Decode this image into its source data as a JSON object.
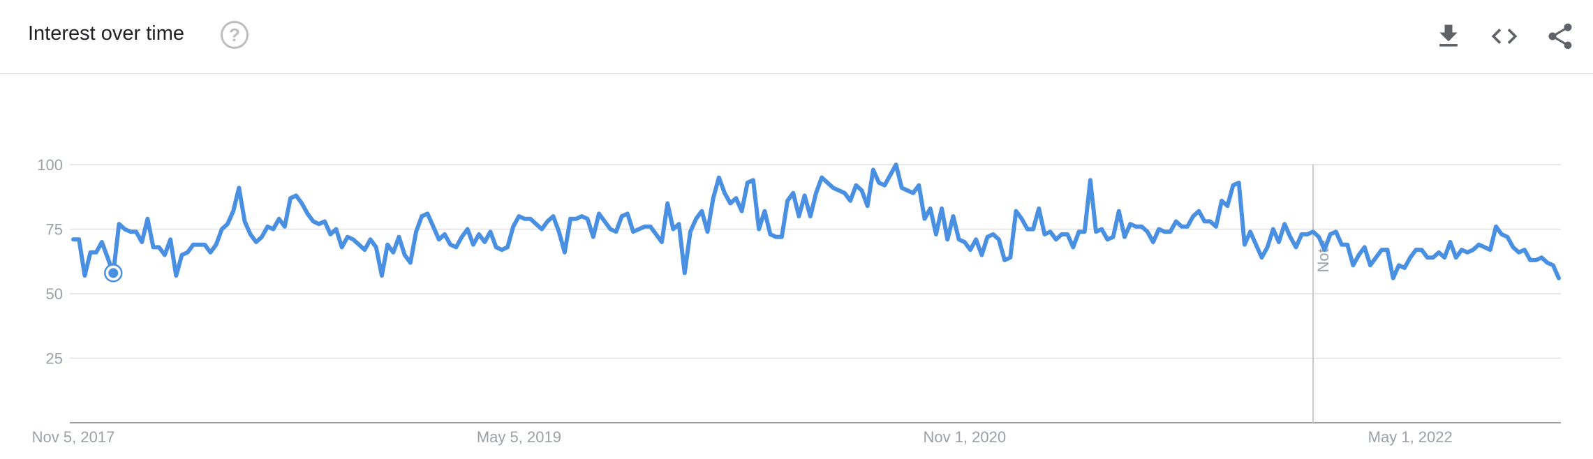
{
  "header": {
    "title": "Interest over time",
    "help_symbol": "?",
    "icons": [
      "download-icon",
      "embed-code-icon",
      "share-icon"
    ]
  },
  "colors": {
    "line": "#4a90e2",
    "grid": "#e0e0e0",
    "axis_text": "#9aa0a6"
  },
  "chart_data": {
    "type": "line",
    "title": "Interest over time",
    "xlabel": "",
    "ylabel": "",
    "ylim": [
      0,
      100
    ],
    "yticks": [
      25,
      50,
      75,
      100
    ],
    "grid": true,
    "x_start": "2017-11-05",
    "x_interval": "weekly",
    "x_tick_labels": [
      {
        "label": "Nov 5, 2017",
        "index": 0
      },
      {
        "label": "May 5, 2019",
        "index": 78
      },
      {
        "label": "Nov 1, 2020",
        "index": 156
      },
      {
        "label": "May 1, 2022",
        "index": 234
      }
    ],
    "highlight_index": 7,
    "note": {
      "label": "Note",
      "index": 217
    },
    "values": [
      71,
      71,
      57,
      66,
      66,
      70,
      64,
      58,
      77,
      75,
      74,
      74,
      70,
      79,
      68,
      68,
      65,
      71,
      57,
      65,
      66,
      69,
      69,
      69,
      66,
      69,
      75,
      77,
      82,
      91,
      78,
      73,
      70,
      72,
      76,
      75,
      79,
      76,
      87,
      88,
      85,
      81,
      78,
      77,
      78,
      73,
      75,
      68,
      72,
      71,
      69,
      67,
      71,
      68,
      57,
      69,
      66,
      72,
      65,
      62,
      74,
      80,
      81,
      76,
      71,
      73,
      69,
      68,
      72,
      75,
      69,
      73,
      70,
      74,
      68,
      67,
      68,
      76,
      80,
      79,
      79,
      77,
      75,
      78,
      80,
      74,
      66,
      79,
      79,
      80,
      79,
      72,
      81,
      78,
      75,
      74,
      80,
      81,
      74,
      75,
      76,
      76,
      73,
      70,
      85,
      75,
      77,
      58,
      74,
      79,
      82,
      74,
      87,
      95,
      89,
      85,
      87,
      82,
      93,
      94,
      75,
      82,
      73,
      72,
      72,
      86,
      89,
      80,
      88,
      80,
      89,
      95,
      93,
      91,
      90,
      89,
      86,
      92,
      90,
      84,
      98,
      93,
      92,
      96,
      100,
      91,
      90,
      89,
      92,
      79,
      83,
      73,
      83,
      71,
      80,
      71,
      70,
      67,
      71,
      65,
      72,
      73,
      71,
      63,
      64,
      82,
      79,
      75,
      75,
      83,
      73,
      74,
      71,
      73,
      73,
      68,
      74,
      74,
      94,
      74,
      75,
      71,
      72,
      82,
      72,
      77,
      76,
      76,
      74,
      70,
      75,
      74,
      74,
      78,
      76,
      76,
      80,
      82,
      78,
      78,
      76,
      86,
      84,
      92,
      93,
      69,
      74,
      69,
      64,
      68,
      75,
      70,
      77,
      72,
      68,
      73,
      73,
      74,
      72,
      67,
      73,
      74,
      69,
      69,
      61,
      65,
      68,
      61,
      64,
      67,
      67,
      56,
      61,
      60,
      64,
      67,
      67,
      64,
      64,
      66,
      64,
      70,
      64,
      67,
      66,
      67,
      69,
      68,
      67,
      76,
      73,
      72,
      68,
      66,
      67,
      63,
      63,
      64,
      62,
      61,
      56
    ]
  }
}
